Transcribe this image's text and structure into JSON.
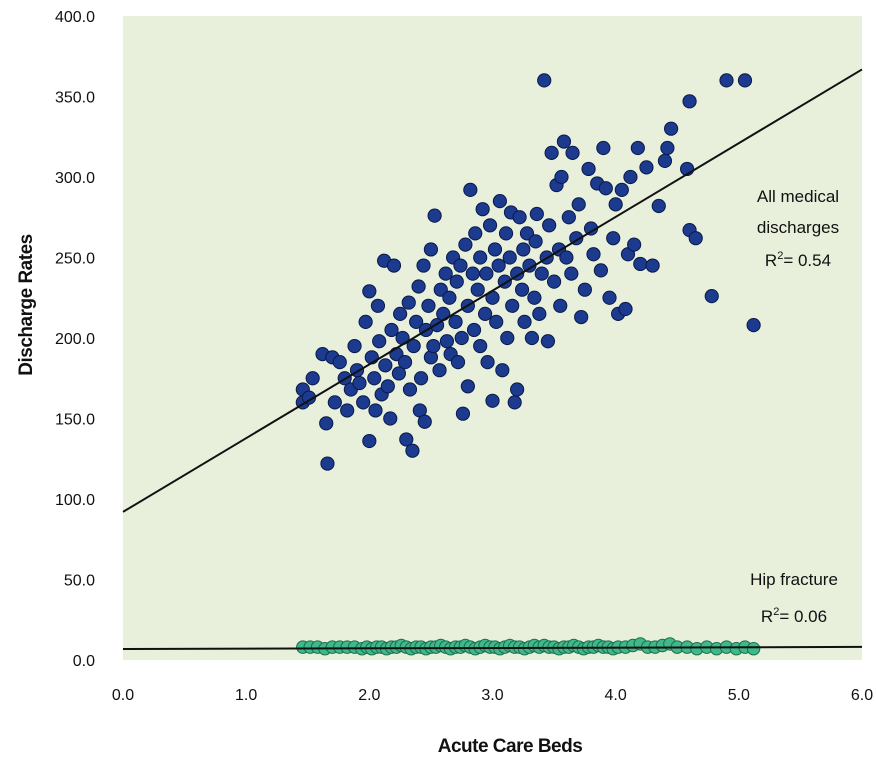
{
  "chart_data": {
    "type": "scatter",
    "xlabel": "Acute Care Beds",
    "ylabel": "Discharge Rates",
    "xlim": [
      0,
      6
    ],
    "ylim": [
      0,
      400
    ],
    "x_ticks": [
      "0.0",
      "1.0",
      "2.0",
      "3.0",
      "4.0",
      "5.0",
      "6.0"
    ],
    "y_ticks": [
      "0.0",
      "50.0",
      "100.0",
      "150.0",
      "200.0",
      "250.0",
      "300.0",
      "350.0",
      "400.0"
    ],
    "grid": false,
    "colors": {
      "plot_background": "#e8f0dc",
      "medical": "#1c3a8e",
      "medical_edge": "#0a1a4a",
      "hip": "#3fb88a",
      "hip_edge": "#1d6e4e",
      "trend_line": "#111111"
    },
    "series": [
      {
        "name": "All medical discharges",
        "annotation": [
          "All medical",
          "discharges"
        ],
        "r2_label": "R",
        "r2_value": "= 0.54",
        "trend": {
          "intercept": 92,
          "slope": 45.8
        },
        "points": [
          [
            1.46,
            168
          ],
          [
            1.46,
            160
          ],
          [
            1.51,
            163
          ],
          [
            1.54,
            175
          ],
          [
            1.62,
            190
          ],
          [
            1.65,
            147
          ],
          [
            1.66,
            122
          ],
          [
            1.7,
            188
          ],
          [
            1.72,
            160
          ],
          [
            1.76,
            185
          ],
          [
            1.8,
            175
          ],
          [
            1.82,
            155
          ],
          [
            1.85,
            168
          ],
          [
            1.88,
            195
          ],
          [
            1.9,
            180
          ],
          [
            1.92,
            172
          ],
          [
            1.95,
            160
          ],
          [
            1.97,
            210
          ],
          [
            2.0,
            229
          ],
          [
            2.0,
            136
          ],
          [
            2.02,
            188
          ],
          [
            2.04,
            175
          ],
          [
            2.05,
            155
          ],
          [
            2.07,
            220
          ],
          [
            2.08,
            198
          ],
          [
            2.1,
            165
          ],
          [
            2.12,
            248
          ],
          [
            2.13,
            183
          ],
          [
            2.15,
            170
          ],
          [
            2.17,
            150
          ],
          [
            2.18,
            205
          ],
          [
            2.2,
            245
          ],
          [
            2.22,
            190
          ],
          [
            2.24,
            178
          ],
          [
            2.25,
            215
          ],
          [
            2.27,
            200
          ],
          [
            2.29,
            185
          ],
          [
            2.3,
            137
          ],
          [
            2.32,
            222
          ],
          [
            2.33,
            168
          ],
          [
            2.35,
            130
          ],
          [
            2.36,
            195
          ],
          [
            2.38,
            210
          ],
          [
            2.4,
            232
          ],
          [
            2.41,
            155
          ],
          [
            2.42,
            175
          ],
          [
            2.44,
            245
          ],
          [
            2.45,
            148
          ],
          [
            2.46,
            205
          ],
          [
            2.48,
            220
          ],
          [
            2.5,
            188
          ],
          [
            2.5,
            255
          ],
          [
            2.52,
            195
          ],
          [
            2.53,
            276
          ],
          [
            2.55,
            208
          ],
          [
            2.57,
            180
          ],
          [
            2.58,
            230
          ],
          [
            2.6,
            215
          ],
          [
            2.62,
            240
          ],
          [
            2.63,
            198
          ],
          [
            2.65,
            225
          ],
          [
            2.66,
            190
          ],
          [
            2.68,
            250
          ],
          [
            2.7,
            210
          ],
          [
            2.71,
            235
          ],
          [
            2.72,
            185
          ],
          [
            2.74,
            245
          ],
          [
            2.75,
            200
          ],
          [
            2.76,
            153
          ],
          [
            2.78,
            258
          ],
          [
            2.8,
            170
          ],
          [
            2.8,
            220
          ],
          [
            2.82,
            292
          ],
          [
            2.84,
            240
          ],
          [
            2.85,
            205
          ],
          [
            2.86,
            265
          ],
          [
            2.88,
            230
          ],
          [
            2.9,
            195
          ],
          [
            2.9,
            250
          ],
          [
            2.92,
            280
          ],
          [
            2.94,
            215
          ],
          [
            2.95,
            240
          ],
          [
            2.96,
            185
          ],
          [
            2.98,
            270
          ],
          [
            3.0,
            161
          ],
          [
            3.0,
            225
          ],
          [
            3.02,
            255
          ],
          [
            3.03,
            210
          ],
          [
            3.05,
            245
          ],
          [
            3.06,
            285
          ],
          [
            3.08,
            180
          ],
          [
            3.1,
            235
          ],
          [
            3.11,
            265
          ],
          [
            3.12,
            200
          ],
          [
            3.14,
            250
          ],
          [
            3.15,
            278
          ],
          [
            3.16,
            220
          ],
          [
            3.18,
            160
          ],
          [
            3.2,
            168
          ],
          [
            3.2,
            240
          ],
          [
            3.22,
            275
          ],
          [
            3.24,
            230
          ],
          [
            3.25,
            255
          ],
          [
            3.26,
            210
          ],
          [
            3.28,
            265
          ],
          [
            3.3,
            245
          ],
          [
            3.32,
            200
          ],
          [
            3.34,
            225
          ],
          [
            3.35,
            260
          ],
          [
            3.36,
            277
          ],
          [
            3.38,
            215
          ],
          [
            3.4,
            240
          ],
          [
            3.42,
            360
          ],
          [
            3.44,
            250
          ],
          [
            3.45,
            198
          ],
          [
            3.46,
            270
          ],
          [
            3.48,
            315
          ],
          [
            3.5,
            235
          ],
          [
            3.52,
            295
          ],
          [
            3.54,
            255
          ],
          [
            3.55,
            220
          ],
          [
            3.56,
            300
          ],
          [
            3.58,
            322
          ],
          [
            3.6,
            250
          ],
          [
            3.62,
            275
          ],
          [
            3.64,
            240
          ],
          [
            3.65,
            315
          ],
          [
            3.68,
            262
          ],
          [
            3.7,
            283
          ],
          [
            3.72,
            213
          ],
          [
            3.75,
            230
          ],
          [
            3.78,
            305
          ],
          [
            3.8,
            268
          ],
          [
            3.82,
            252
          ],
          [
            3.85,
            296
          ],
          [
            3.88,
            242
          ],
          [
            3.9,
            318
          ],
          [
            3.92,
            293
          ],
          [
            3.95,
            225
          ],
          [
            3.98,
            262
          ],
          [
            4.0,
            283
          ],
          [
            4.02,
            215
          ],
          [
            4.05,
            292
          ],
          [
            4.08,
            218
          ],
          [
            4.1,
            252
          ],
          [
            4.12,
            300
          ],
          [
            4.15,
            258
          ],
          [
            4.18,
            318
          ],
          [
            4.2,
            246
          ],
          [
            4.25,
            306
          ],
          [
            4.3,
            245
          ],
          [
            4.35,
            282
          ],
          [
            4.4,
            310
          ],
          [
            4.42,
            318
          ],
          [
            4.45,
            330
          ],
          [
            4.58,
            305
          ],
          [
            4.6,
            347
          ],
          [
            4.6,
            267
          ],
          [
            4.65,
            262
          ],
          [
            4.78,
            226
          ],
          [
            4.9,
            360
          ],
          [
            5.05,
            360
          ],
          [
            5.12,
            208
          ]
        ]
      },
      {
        "name": "Hip fracture",
        "annotation": [
          "Hip fracture"
        ],
        "r2_label": "R",
        "r2_value": "= 0.06",
        "trend": {
          "intercept": 6.8,
          "slope": 0.22
        },
        "points": [
          [
            1.46,
            8
          ],
          [
            1.52,
            8
          ],
          [
            1.58,
            8
          ],
          [
            1.64,
            7
          ],
          [
            1.7,
            8
          ],
          [
            1.76,
            8
          ],
          [
            1.82,
            8
          ],
          [
            1.88,
            8
          ],
          [
            1.94,
            7
          ],
          [
            1.98,
            8
          ],
          [
            2.02,
            7
          ],
          [
            2.06,
            8
          ],
          [
            2.1,
            8
          ],
          [
            2.14,
            7
          ],
          [
            2.18,
            8
          ],
          [
            2.22,
            8
          ],
          [
            2.26,
            9
          ],
          [
            2.3,
            8
          ],
          [
            2.34,
            7
          ],
          [
            2.38,
            8
          ],
          [
            2.42,
            8
          ],
          [
            2.46,
            7
          ],
          [
            2.5,
            8
          ],
          [
            2.54,
            8
          ],
          [
            2.58,
            9
          ],
          [
            2.62,
            8
          ],
          [
            2.66,
            7
          ],
          [
            2.7,
            8
          ],
          [
            2.74,
            8
          ],
          [
            2.78,
            9
          ],
          [
            2.82,
            8
          ],
          [
            2.86,
            7
          ],
          [
            2.9,
            8
          ],
          [
            2.94,
            9
          ],
          [
            2.98,
            8
          ],
          [
            3.02,
            8
          ],
          [
            3.06,
            7
          ],
          [
            3.1,
            8
          ],
          [
            3.14,
            9
          ],
          [
            3.18,
            8
          ],
          [
            3.22,
            8
          ],
          [
            3.26,
            7
          ],
          [
            3.3,
            8
          ],
          [
            3.34,
            9
          ],
          [
            3.38,
            8
          ],
          [
            3.42,
            9
          ],
          [
            3.46,
            8
          ],
          [
            3.5,
            8
          ],
          [
            3.54,
            7
          ],
          [
            3.58,
            8
          ],
          [
            3.62,
            8
          ],
          [
            3.66,
            9
          ],
          [
            3.7,
            8
          ],
          [
            3.74,
            7
          ],
          [
            3.78,
            8
          ],
          [
            3.82,
            8
          ],
          [
            3.86,
            9
          ],
          [
            3.9,
            8
          ],
          [
            3.94,
            8
          ],
          [
            3.98,
            7
          ],
          [
            4.02,
            8
          ],
          [
            4.08,
            8
          ],
          [
            4.14,
            9
          ],
          [
            4.2,
            10
          ],
          [
            4.26,
            8
          ],
          [
            4.32,
            8
          ],
          [
            4.38,
            9
          ],
          [
            4.44,
            10
          ],
          [
            4.5,
            8
          ],
          [
            4.58,
            8
          ],
          [
            4.66,
            7
          ],
          [
            4.74,
            8
          ],
          [
            4.82,
            7
          ],
          [
            4.9,
            8
          ],
          [
            4.98,
            7
          ],
          [
            5.05,
            8
          ],
          [
            5.12,
            7
          ]
        ]
      }
    ]
  }
}
